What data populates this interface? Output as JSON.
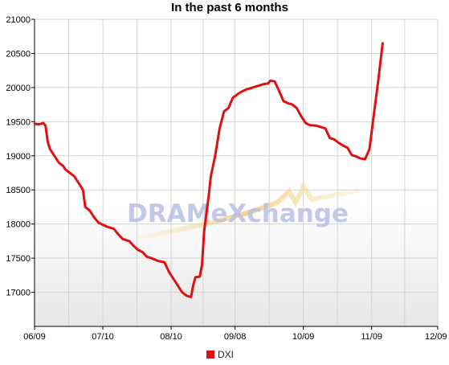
{
  "chart_data": {
    "type": "line",
    "title": "In the past 6 months",
    "xlabel": "",
    "ylabel": "",
    "ylim": [
      16500,
      21000
    ],
    "yticks": [
      17000,
      17500,
      18000,
      18500,
      19000,
      19500,
      20000,
      20500,
      21000
    ],
    "ytick_labels": [
      "17000",
      "17500",
      "18000",
      "18500",
      "19000",
      "19500",
      "20000",
      "20500",
      "21000"
    ],
    "xtick_labels": [
      "06/09",
      "07/10",
      "08/10",
      "09/08",
      "10/09",
      "11/09",
      "12/09"
    ],
    "xtick_positions": [
      0,
      31,
      62,
      91,
      122,
      153,
      183
    ],
    "xlim": [
      0,
      183
    ],
    "grid": true,
    "legend_position": "bottom",
    "series": [
      {
        "name": "DXI",
        "color": "#e01010",
        "points": [
          [
            0,
            19470
          ],
          [
            2,
            19460
          ],
          [
            4,
            19480
          ],
          [
            5,
            19440
          ],
          [
            6,
            19200
          ],
          [
            7,
            19100
          ],
          [
            9,
            19000
          ],
          [
            11,
            18900
          ],
          [
            13,
            18850
          ],
          [
            14,
            18800
          ],
          [
            16,
            18750
          ],
          [
            18,
            18700
          ],
          [
            20,
            18600
          ],
          [
            22,
            18500
          ],
          [
            23,
            18250
          ],
          [
            25,
            18200
          ],
          [
            27,
            18100
          ],
          [
            29,
            18020
          ],
          [
            31,
            17990
          ],
          [
            33,
            17960
          ],
          [
            36,
            17930
          ],
          [
            38,
            17850
          ],
          [
            40,
            17780
          ],
          [
            43,
            17750
          ],
          [
            45,
            17680
          ],
          [
            47,
            17620
          ],
          [
            49,
            17590
          ],
          [
            51,
            17520
          ],
          [
            53,
            17500
          ],
          [
            56,
            17460
          ],
          [
            59,
            17440
          ],
          [
            61,
            17300
          ],
          [
            63,
            17200
          ],
          [
            65,
            17100
          ],
          [
            67,
            17000
          ],
          [
            69,
            16950
          ],
          [
            71,
            16930
          ],
          [
            72,
            17100
          ],
          [
            73,
            17220
          ],
          [
            75,
            17230
          ],
          [
            76,
            17400
          ],
          [
            77,
            17900
          ],
          [
            79,
            18400
          ],
          [
            80,
            18700
          ],
          [
            82,
            19000
          ],
          [
            84,
            19400
          ],
          [
            86,
            19650
          ],
          [
            88,
            19700
          ],
          [
            90,
            19850
          ],
          [
            92,
            19900
          ],
          [
            94,
            19940
          ],
          [
            96,
            19970
          ],
          [
            98,
            19990
          ],
          [
            100,
            20010
          ],
          [
            102,
            20030
          ],
          [
            104,
            20050
          ],
          [
            106,
            20060
          ],
          [
            107,
            20100
          ],
          [
            109,
            20090
          ],
          [
            111,
            19950
          ],
          [
            113,
            19800
          ],
          [
            115,
            19770
          ],
          [
            117,
            19750
          ],
          [
            119,
            19700
          ],
          [
            121,
            19580
          ],
          [
            123,
            19480
          ],
          [
            125,
            19450
          ],
          [
            128,
            19440
          ],
          [
            130,
            19420
          ],
          [
            132,
            19400
          ],
          [
            134,
            19260
          ],
          [
            136,
            19240
          ],
          [
            138,
            19190
          ],
          [
            140,
            19150
          ],
          [
            142,
            19120
          ],
          [
            144,
            19010
          ],
          [
            146,
            18990
          ],
          [
            148,
            18960
          ],
          [
            150,
            18950
          ],
          [
            152,
            19100
          ],
          [
            154,
            19600
          ],
          [
            156,
            20100
          ],
          [
            158,
            20650
          ]
        ]
      }
    ]
  },
  "watermark": {
    "text": "DRAMeXchange",
    "accent_color": "#f0d090"
  }
}
